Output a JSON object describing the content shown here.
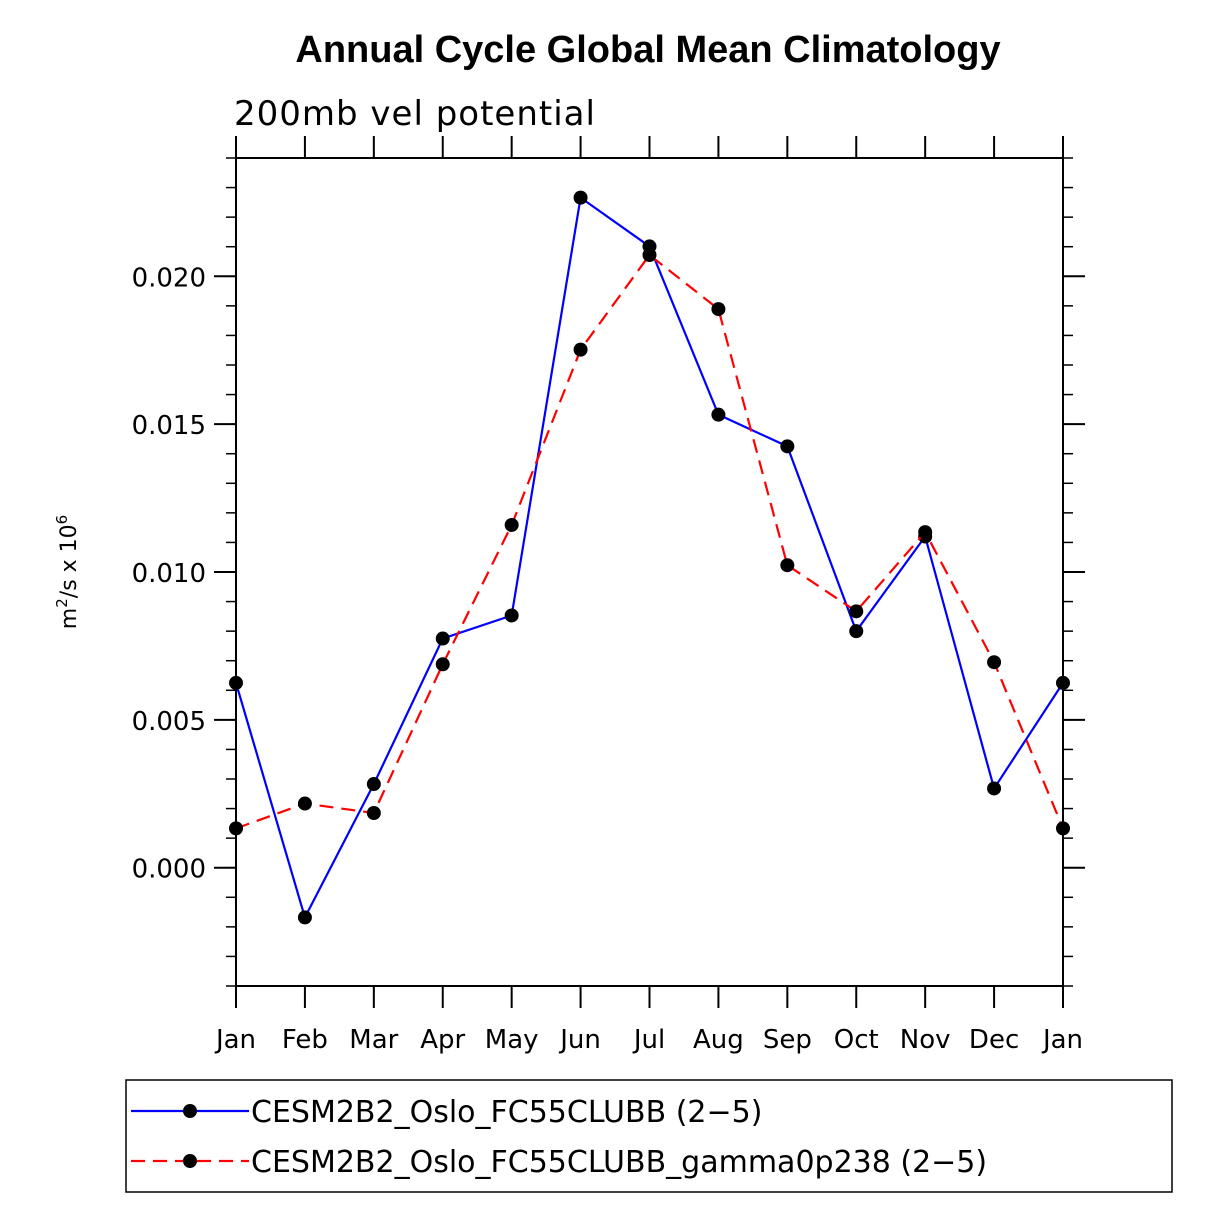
{
  "chart_data": {
    "type": "line",
    "title": "Annual Cycle Global Mean Climatology",
    "subtitle": "200mb vel potential",
    "ylabel": {
      "base": "m",
      "exp1": "2",
      "mid": "/s x 10",
      "exp2": "6"
    },
    "xlabel": "",
    "categories": [
      "Jan",
      "Feb",
      "Mar",
      "Apr",
      "May",
      "Jun",
      "Jul",
      "Aug",
      "Sep",
      "Oct",
      "Nov",
      "Dec",
      "Jan"
    ],
    "ylim": [
      -0.004,
      0.024
    ],
    "yticks": [
      0.0,
      0.005,
      0.01,
      0.015,
      0.02
    ],
    "ytick_labels": [
      "0.000",
      "0.005",
      "0.010",
      "0.015",
      "0.020"
    ],
    "grid": false,
    "legend_position": "bottom",
    "series": [
      {
        "name": "CESM2B2_Oslo_FC55CLUBB (2−5)",
        "color": "#0000ff",
        "dash": "solid",
        "values": [
          0.00625,
          -0.00168,
          0.00283,
          0.00775,
          0.00853,
          0.02266,
          0.02101,
          0.01532,
          0.01425,
          0.008,
          0.0112,
          0.00268,
          0.00625
        ]
      },
      {
        "name": "CESM2B2_Oslo_FC55CLUBB_gamma0p238 (2−5)",
        "color": "#ff0000",
        "dash": "dashed",
        "values": [
          0.00133,
          0.00217,
          0.00185,
          0.00688,
          0.01159,
          0.01752,
          0.02072,
          0.01889,
          0.01023,
          0.00867,
          0.01135,
          0.00695,
          0.00133
        ]
      }
    ],
    "marker_color": "#000000"
  }
}
